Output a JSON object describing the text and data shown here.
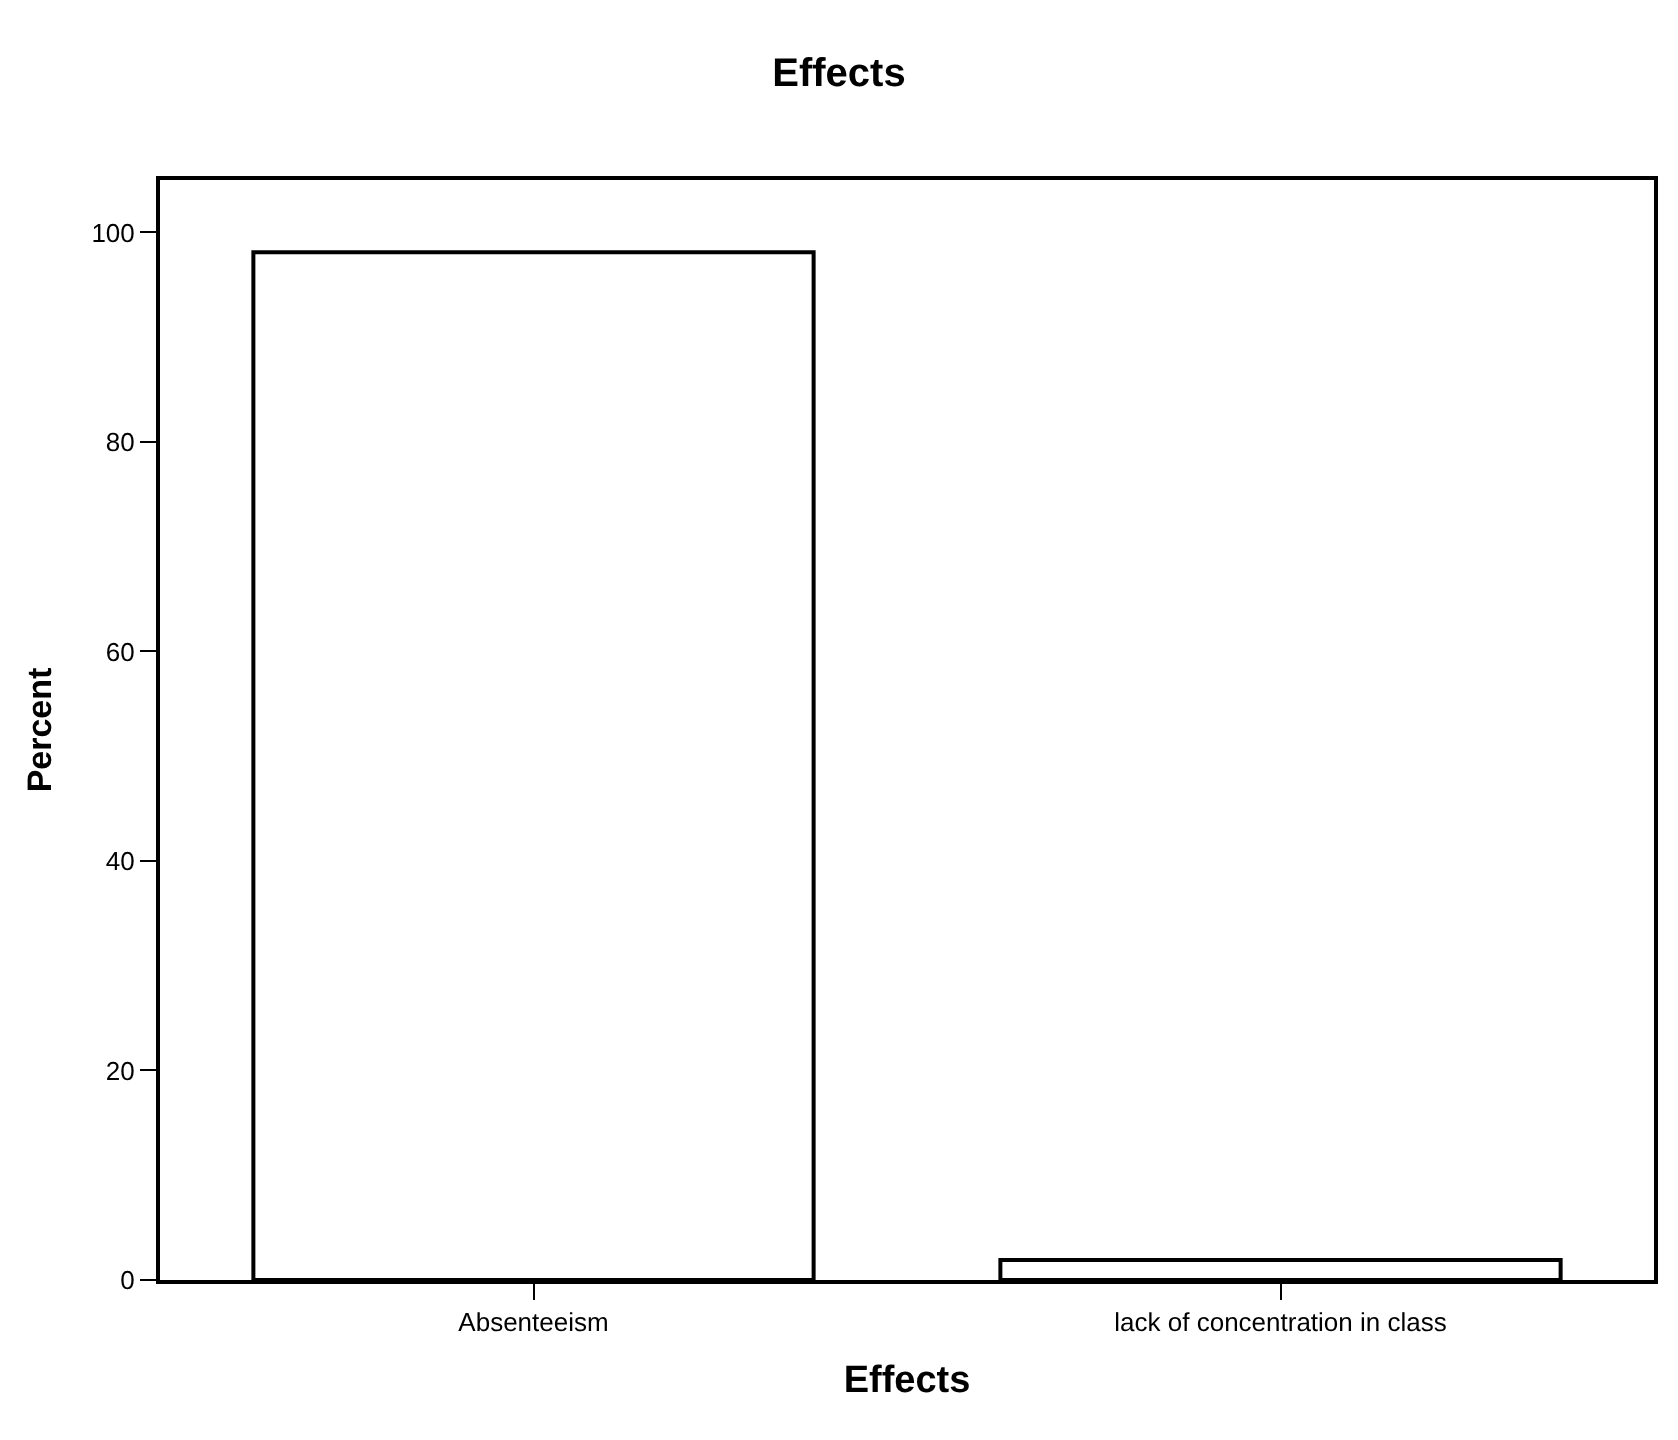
{
  "chart_data": {
    "type": "bar",
    "title": "Effects",
    "xlabel": "Effects",
    "ylabel": "Percent",
    "categories": [
      "Absenteeism",
      "lack of concentration in class"
    ],
    "values": [
      98.1,
      1.9
    ],
    "color": "#ffffff",
    "ylim": [
      0,
      105
    ],
    "yticks": [
      0,
      20,
      40,
      60,
      80,
      100
    ]
  }
}
